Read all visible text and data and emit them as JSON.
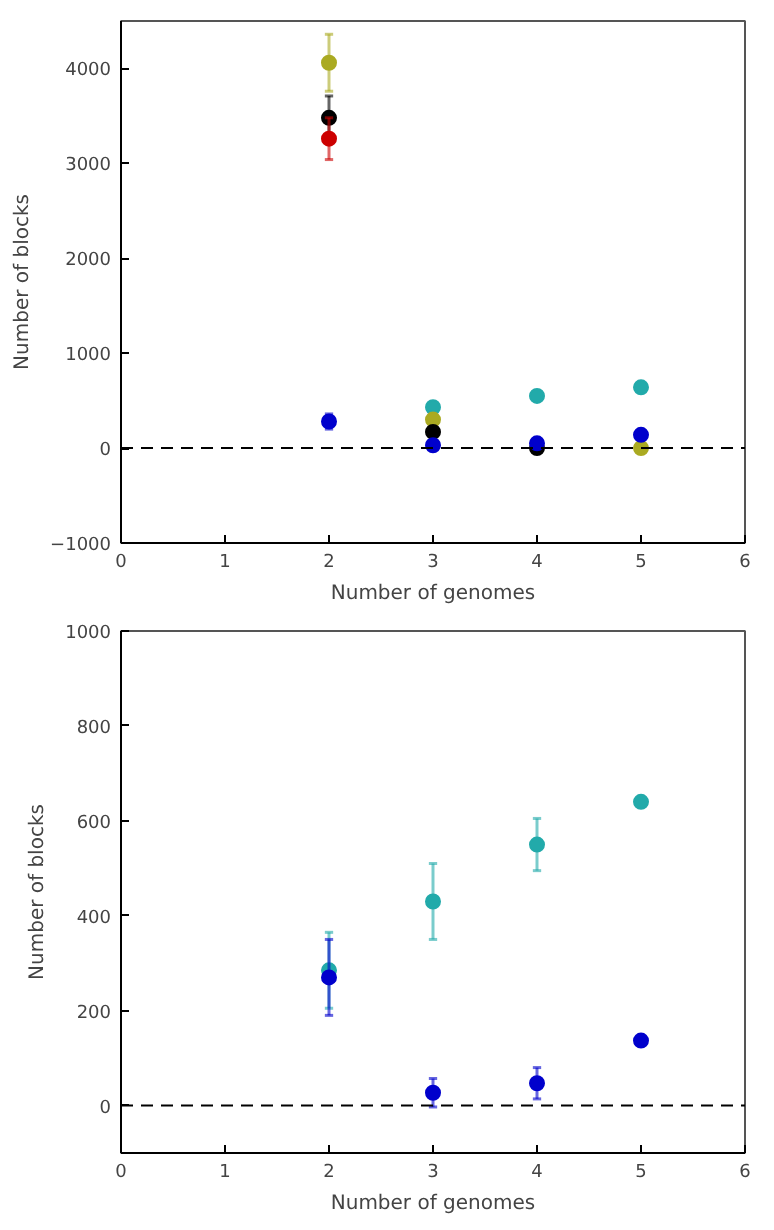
{
  "chart_data": [
    {
      "type": "scatter",
      "xlabel": "Number of genomes",
      "ylabel": "Number of blocks",
      "xlim": [
        0,
        6
      ],
      "ylim": [
        -1000,
        4500
      ],
      "xticks": [
        0,
        1,
        2,
        3,
        4,
        5,
        6
      ],
      "yticks": [
        -1000,
        0,
        1000,
        2000,
        3000,
        4000
      ],
      "grid": false,
      "marker": "circle",
      "x": [
        2,
        3,
        4,
        5
      ],
      "ref_lines": [
        {
          "axis": "y",
          "value": 0,
          "label": null,
          "color": "#000000",
          "line_style": "dashed"
        }
      ],
      "series": [
        {
          "color": "#22aaaa",
          "values": [
            null,
            430,
            550,
            640
          ],
          "errors": [
            null,
            null,
            null,
            null
          ]
        },
        {
          "color": "#aaaa22",
          "values": [
            4060,
            300,
            null,
            0
          ],
          "errors": [
            300,
            null,
            null,
            null
          ]
        },
        {
          "color": "#000000",
          "values": [
            3480,
            170,
            0,
            null
          ],
          "errors": [
            230,
            null,
            null,
            null
          ]
        },
        {
          "color": "#cc0000",
          "values": [
            3260,
            null,
            null,
            null
          ],
          "errors": [
            220,
            null,
            null,
            null
          ]
        },
        {
          "color": "#0000cc",
          "values": [
            280,
            30,
            50,
            140
          ],
          "errors": [
            80,
            null,
            null,
            null
          ]
        }
      ]
    },
    {
      "type": "scatter",
      "xlabel": "Number of genomes",
      "ylabel": "Number of blocks",
      "xlim": [
        0,
        6
      ],
      "ylim": [
        -100,
        1000
      ],
      "xticks": [
        0,
        1,
        2,
        3,
        4,
        5,
        6
      ],
      "yticks": [
        0,
        200,
        400,
        600,
        800,
        1000
      ],
      "grid": false,
      "marker": "circle",
      "x": [
        2,
        3,
        4,
        5
      ],
      "ref_lines": [
        {
          "axis": "y",
          "value": 0,
          "label": null,
          "color": "#000000",
          "line_style": "dashed"
        }
      ],
      "series": [
        {
          "color": "#22aaaa",
          "values": [
            285,
            430,
            550,
            640
          ],
          "errors": [
            80,
            80,
            55,
            null
          ]
        },
        {
          "color": "#0000cc",
          "values": [
            270,
            27,
            47,
            137
          ],
          "errors": [
            80,
            30,
            33,
            null
          ]
        }
      ]
    }
  ]
}
